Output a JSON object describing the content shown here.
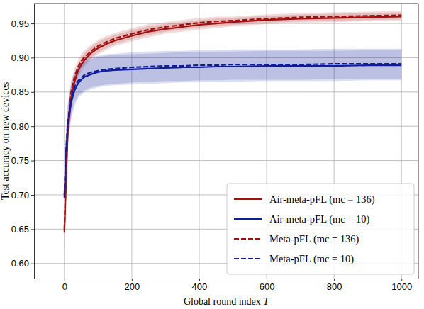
{
  "chart_data": {
    "type": "line",
    "x_label": "Global round index T",
    "y_label": "Test accuracy on new devices",
    "x": [
      0,
      5,
      10,
      20,
      30,
      40,
      50,
      60,
      80,
      100,
      125,
      150,
      200,
      250,
      300,
      350,
      400,
      450,
      500,
      600,
      700,
      800,
      900,
      1000
    ],
    "series": [
      {
        "name": "Air-meta-pFL (mc = 136)",
        "color": "#a01010",
        "line_style": "solid",
        "values": [
          0.645,
          0.72,
          0.79,
          0.84,
          0.865,
          0.88,
          0.89,
          0.897,
          0.907,
          0.914,
          0.92,
          0.925,
          0.932,
          0.938,
          0.942,
          0.945,
          0.948,
          0.95,
          0.952,
          0.955,
          0.957,
          0.958,
          0.959,
          0.96
        ],
        "error": [
          0.03,
          0.025,
          0.02,
          0.015,
          0.012,
          0.01,
          0.01,
          0.01,
          0.009,
          0.009,
          0.009,
          0.008,
          0.008,
          0.008,
          0.007,
          0.007,
          0.007,
          0.007,
          0.006,
          0.006,
          0.006,
          0.006,
          0.006,
          0.006
        ]
      },
      {
        "name": "Air-meta-pFL (mc = 10)",
        "color": "#101d9a",
        "line_style": "solid",
        "values": [
          0.695,
          0.76,
          0.8,
          0.835,
          0.852,
          0.862,
          0.868,
          0.872,
          0.876,
          0.879,
          0.881,
          0.882,
          0.883,
          0.884,
          0.885,
          0.886,
          0.886,
          0.887,
          0.887,
          0.888,
          0.888,
          0.888,
          0.889,
          0.889
        ],
        "error": [
          0.03,
          0.03,
          0.028,
          0.025,
          0.022,
          0.022,
          0.022,
          0.022,
          0.022,
          0.022,
          0.022,
          0.022,
          0.022,
          0.022,
          0.022,
          0.022,
          0.022,
          0.022,
          0.022,
          0.022,
          0.022,
          0.022,
          0.022,
          0.022
        ]
      },
      {
        "name": "Meta-pFL (mc = 136)",
        "color": "#a01010",
        "line_style": "dashed",
        "values": [
          0.65,
          0.73,
          0.8,
          0.85,
          0.872,
          0.886,
          0.895,
          0.901,
          0.91,
          0.917,
          0.923,
          0.928,
          0.935,
          0.941,
          0.945,
          0.948,
          0.951,
          0.953,
          0.954,
          0.957,
          0.959,
          0.96,
          0.961,
          0.962
        ],
        "error": [
          0.03,
          0.025,
          0.02,
          0.015,
          0.012,
          0.01,
          0.01,
          0.01,
          0.009,
          0.009,
          0.009,
          0.008,
          0.008,
          0.008,
          0.007,
          0.007,
          0.007,
          0.007,
          0.006,
          0.006,
          0.006,
          0.006,
          0.006,
          0.006
        ]
      },
      {
        "name": "Meta-pFL (mc = 10)",
        "color": "#101d9a",
        "line_style": "dashed",
        "values": [
          0.7,
          0.765,
          0.805,
          0.84,
          0.857,
          0.866,
          0.871,
          0.875,
          0.879,
          0.881,
          0.883,
          0.884,
          0.886,
          0.887,
          0.888,
          0.888,
          0.889,
          0.889,
          0.89,
          0.89,
          0.89,
          0.891,
          0.891,
          0.891
        ],
        "error": [
          0.03,
          0.03,
          0.028,
          0.025,
          0.022,
          0.022,
          0.022,
          0.022,
          0.022,
          0.022,
          0.022,
          0.022,
          0.022,
          0.022,
          0.022,
          0.022,
          0.022,
          0.022,
          0.022,
          0.022,
          0.022,
          0.022,
          0.022,
          0.022
        ]
      }
    ],
    "xlim": [
      -90,
      1050
    ],
    "ylim": [
      0.578,
      0.979
    ],
    "xticks": [
      0,
      200,
      400,
      600,
      800,
      1000
    ],
    "yticks": [
      {
        "value": 0.6,
        "label": "0.60"
      },
      {
        "value": 0.65,
        "label": "0.65"
      },
      {
        "value": 0.7,
        "label": "0.70"
      },
      {
        "value": 0.75,
        "label": "0.75"
      },
      {
        "value": 0.8,
        "label": "0.80"
      },
      {
        "value": 0.85,
        "label": "0.85"
      },
      {
        "value": 0.9,
        "label": "0.90"
      },
      {
        "value": 0.95,
        "label": "0.95"
      }
    ],
    "grid": true,
    "legend": "lower right"
  }
}
